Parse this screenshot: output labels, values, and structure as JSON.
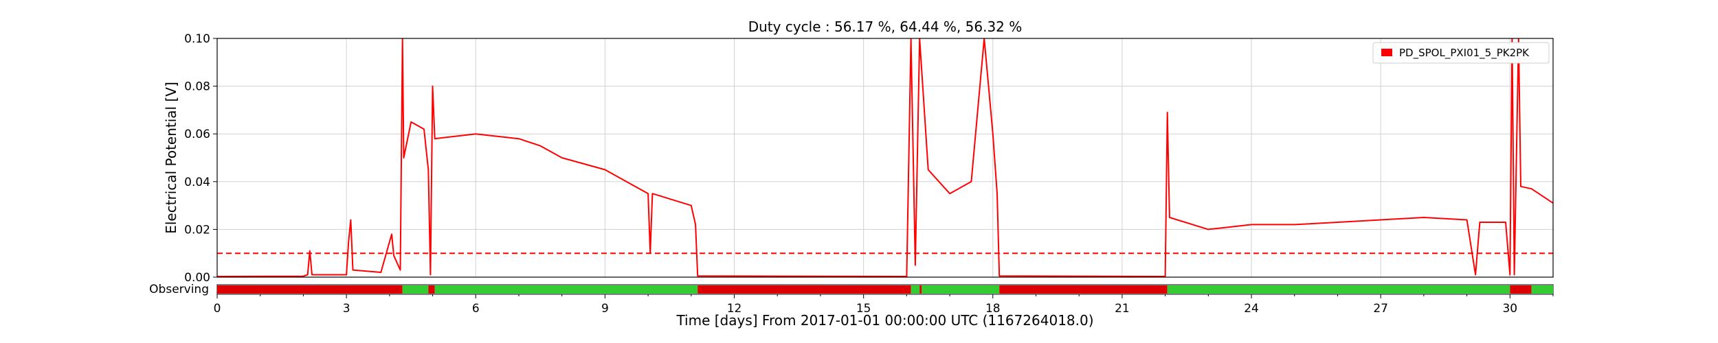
{
  "chart_data": {
    "type": "line",
    "title": "Duty cycle : 56.17 %, 64.44 %, 56.32 %",
    "xlabel": "Time [days] From 2017-01-01 00:00:00 UTC (1167264018.0)",
    "ylabel": "Electrical Potential [V]",
    "xlim": [
      0,
      31
    ],
    "ylim": [
      0,
      0.1
    ],
    "x_ticks": [
      0,
      3,
      6,
      9,
      12,
      15,
      18,
      21,
      24,
      27,
      30
    ],
    "y_ticks": [
      0.0,
      0.02,
      0.04,
      0.06,
      0.08,
      0.1
    ],
    "y_tick_labels": [
      "0.00",
      "0.02",
      "0.04",
      "0.06",
      "0.08",
      "0.10"
    ],
    "grid": true,
    "legend_position": "top-right",
    "series": [
      {
        "name": "PD_SPOL_PXI01_5_PK2PK",
        "color": "#ff0000",
        "points": [
          [
            0,
            0.0003
          ],
          [
            2.0,
            0.0004
          ],
          [
            2.1,
            0.001
          ],
          [
            2.15,
            0.011
          ],
          [
            2.2,
            0.001
          ],
          [
            3.0,
            0.001
          ],
          [
            3.05,
            0.015
          ],
          [
            3.1,
            0.024
          ],
          [
            3.15,
            0.003
          ],
          [
            3.8,
            0.002
          ],
          [
            4.05,
            0.018
          ],
          [
            4.1,
            0.009
          ],
          [
            4.25,
            0.003
          ],
          [
            4.3,
            0.1
          ],
          [
            4.33,
            0.05
          ],
          [
            4.5,
            0.065
          ],
          [
            4.8,
            0.062
          ],
          [
            4.9,
            0.045
          ],
          [
            4.95,
            0.001
          ],
          [
            5.0,
            0.08
          ],
          [
            5.05,
            0.058
          ],
          [
            6.0,
            0.06
          ],
          [
            7.0,
            0.058
          ],
          [
            7.5,
            0.055
          ],
          [
            8.0,
            0.05
          ],
          [
            9.0,
            0.045
          ],
          [
            10.0,
            0.035
          ],
          [
            10.05,
            0.01
          ],
          [
            10.1,
            0.035
          ],
          [
            11.0,
            0.03
          ],
          [
            11.1,
            0.022
          ],
          [
            11.15,
            0.0005
          ],
          [
            16.0,
            0.0003
          ],
          [
            16.1,
            0.1
          ],
          [
            16.2,
            0.005
          ],
          [
            16.3,
            0.1
          ],
          [
            16.5,
            0.045
          ],
          [
            17.0,
            0.035
          ],
          [
            17.5,
            0.04
          ],
          [
            17.8,
            0.1
          ],
          [
            18.0,
            0.06
          ],
          [
            18.1,
            0.035
          ],
          [
            18.15,
            0.0005
          ],
          [
            22.0,
            0.0003
          ],
          [
            22.05,
            0.069
          ],
          [
            22.1,
            0.025
          ],
          [
            23.0,
            0.02
          ],
          [
            24.0,
            0.022
          ],
          [
            25.0,
            0.022
          ],
          [
            26.0,
            0.023
          ],
          [
            27.0,
            0.024
          ],
          [
            28.0,
            0.025
          ],
          [
            29.0,
            0.024
          ],
          [
            29.2,
            0.001
          ],
          [
            29.3,
            0.023
          ],
          [
            29.9,
            0.023
          ],
          [
            30.0,
            0.001
          ],
          [
            30.05,
            0.1
          ],
          [
            30.1,
            0.001
          ],
          [
            30.2,
            0.1
          ],
          [
            30.25,
            0.038
          ],
          [
            30.5,
            0.037
          ],
          [
            31.0,
            0.031
          ]
        ]
      }
    ],
    "threshold": {
      "y": 0.01,
      "color": "#ff0000",
      "style": "dashed"
    },
    "segments_label": "Observing",
    "segments": [
      {
        "start": 0,
        "end": 4.3,
        "state": "off"
      },
      {
        "start": 4.3,
        "end": 4.9,
        "state": "on"
      },
      {
        "start": 4.9,
        "end": 5.05,
        "state": "off"
      },
      {
        "start": 5.05,
        "end": 11.15,
        "state": "on"
      },
      {
        "start": 11.15,
        "end": 16.1,
        "state": "off"
      },
      {
        "start": 16.1,
        "end": 16.3,
        "state": "on"
      },
      {
        "start": 16.3,
        "end": 16.35,
        "state": "off"
      },
      {
        "start": 16.35,
        "end": 18.15,
        "state": "on"
      },
      {
        "start": 18.15,
        "end": 22.05,
        "state": "off"
      },
      {
        "start": 22.05,
        "end": 30.0,
        "state": "on"
      },
      {
        "start": 30.0,
        "end": 30.5,
        "state": "off"
      },
      {
        "start": 30.5,
        "end": 31,
        "state": "on"
      }
    ],
    "segment_colors": {
      "on": "#33cc33",
      "off": "#dd0000"
    }
  }
}
